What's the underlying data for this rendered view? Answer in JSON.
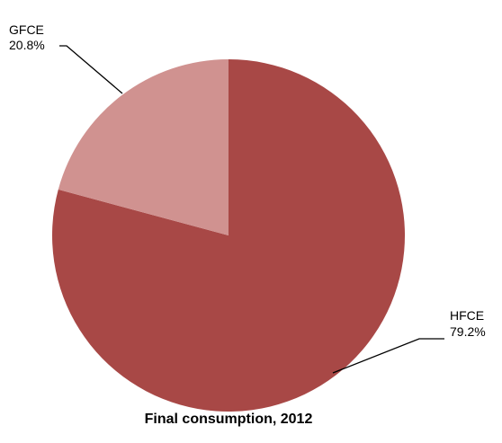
{
  "chart_data": {
    "type": "pie",
    "title": "Final consumption, 2012",
    "slices": [
      {
        "name": "HFCE",
        "value": 79.2,
        "label": "79.2%",
        "color": "#a84846"
      },
      {
        "name": "GFCE",
        "value": 20.8,
        "label": "20.8%",
        "color": "#d09290"
      }
    ],
    "start_angle_deg": 0,
    "direction": "clockwise",
    "legend": "none"
  }
}
